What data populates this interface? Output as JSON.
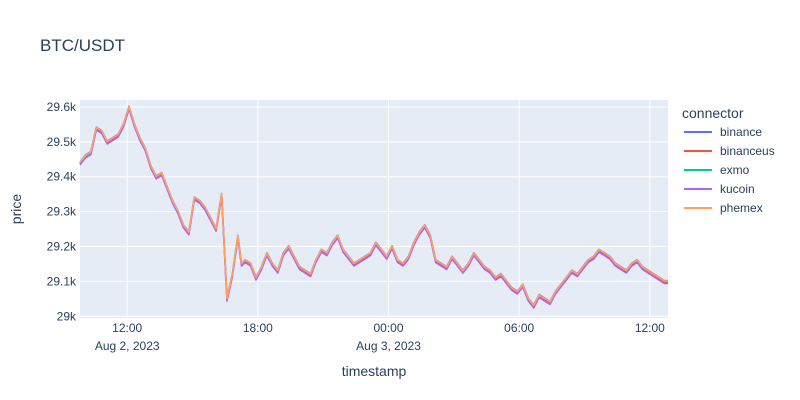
{
  "chart_data": {
    "type": "line",
    "title": "BTC/USDT",
    "xlabel": "timestamp",
    "ylabel": "price",
    "xlim": [
      "2023-08-02 09:50",
      "2023-08-03 12:50"
    ],
    "ylim": [
      28995,
      29620
    ],
    "x_ticks": [
      {
        "t": "2023-08-02 12:00",
        "label": "12:00",
        "sublabel": "Aug 2, 2023"
      },
      {
        "t": "2023-08-02 18:00",
        "label": "18:00",
        "sublabel": ""
      },
      {
        "t": "2023-08-03 00:00",
        "label": "00:00",
        "sublabel": "Aug 3, 2023"
      },
      {
        "t": "2023-08-03 06:00",
        "label": "06:00",
        "sublabel": ""
      },
      {
        "t": "2023-08-03 12:00",
        "label": "12:00",
        "sublabel": ""
      }
    ],
    "y_ticks": [
      {
        "v": 29000,
        "label": "29k"
      },
      {
        "v": 29100,
        "label": "29.1k"
      },
      {
        "v": 29200,
        "label": "29.2k"
      },
      {
        "v": 29300,
        "label": "29.3k"
      },
      {
        "v": 29400,
        "label": "29.4k"
      },
      {
        "v": 29500,
        "label": "29.5k"
      },
      {
        "v": 29600,
        "label": "29.6k"
      }
    ],
    "grid": true,
    "legend_title": "connector",
    "legend_position": "right",
    "base_series": {
      "x": [
        "2023-08-02 09:50",
        "2023-08-02 10:05",
        "2023-08-02 10:20",
        "2023-08-02 10:35",
        "2023-08-02 10:50",
        "2023-08-02 11:05",
        "2023-08-02 11:20",
        "2023-08-02 11:35",
        "2023-08-02 11:50",
        "2023-08-02 12:05",
        "2023-08-02 12:20",
        "2023-08-02 12:35",
        "2023-08-02 12:50",
        "2023-08-02 13:05",
        "2023-08-02 13:20",
        "2023-08-02 13:35",
        "2023-08-02 13:50",
        "2023-08-02 14:05",
        "2023-08-02 14:20",
        "2023-08-02 14:35",
        "2023-08-02 14:50",
        "2023-08-02 15:05",
        "2023-08-02 15:20",
        "2023-08-02 15:35",
        "2023-08-02 15:50",
        "2023-08-02 16:05",
        "2023-08-02 16:20",
        "2023-08-02 16:35",
        "2023-08-02 16:50",
        "2023-08-02 17:05",
        "2023-08-02 17:15",
        "2023-08-02 17:25",
        "2023-08-02 17:40",
        "2023-08-02 17:55",
        "2023-08-02 18:10",
        "2023-08-02 18:25",
        "2023-08-02 18:40",
        "2023-08-02 18:55",
        "2023-08-02 19:10",
        "2023-08-02 19:25",
        "2023-08-02 19:40",
        "2023-08-02 19:55",
        "2023-08-02 20:10",
        "2023-08-02 20:25",
        "2023-08-02 20:40",
        "2023-08-02 20:55",
        "2023-08-02 21:10",
        "2023-08-02 21:25",
        "2023-08-02 21:40",
        "2023-08-02 21:55",
        "2023-08-02 22:10",
        "2023-08-02 22:25",
        "2023-08-02 22:40",
        "2023-08-02 22:55",
        "2023-08-02 23:10",
        "2023-08-02 23:25",
        "2023-08-02 23:40",
        "2023-08-02 23:55",
        "2023-08-03 00:10",
        "2023-08-03 00:25",
        "2023-08-03 00:40",
        "2023-08-03 00:55",
        "2023-08-03 01:10",
        "2023-08-03 01:25",
        "2023-08-03 01:40",
        "2023-08-03 01:55",
        "2023-08-03 02:10",
        "2023-08-03 02:25",
        "2023-08-03 02:40",
        "2023-08-03 02:55",
        "2023-08-03 03:10",
        "2023-08-03 03:25",
        "2023-08-03 03:40",
        "2023-08-03 03:55",
        "2023-08-03 04:10",
        "2023-08-03 04:25",
        "2023-08-03 04:40",
        "2023-08-03 04:55",
        "2023-08-03 05:10",
        "2023-08-03 05:25",
        "2023-08-03 05:40",
        "2023-08-03 05:55",
        "2023-08-03 06:10",
        "2023-08-03 06:25",
        "2023-08-03 06:40",
        "2023-08-03 06:55",
        "2023-08-03 07:10",
        "2023-08-03 07:25",
        "2023-08-03 07:40",
        "2023-08-03 07:55",
        "2023-08-03 08:10",
        "2023-08-03 08:25",
        "2023-08-03 08:40",
        "2023-08-03 08:55",
        "2023-08-03 09:10",
        "2023-08-03 09:25",
        "2023-08-03 09:40",
        "2023-08-03 09:55",
        "2023-08-03 10:10",
        "2023-08-03 10:25",
        "2023-08-03 10:40",
        "2023-08-03 10:55",
        "2023-08-03 11:10",
        "2023-08-03 11:25",
        "2023-08-03 11:40",
        "2023-08-03 11:55",
        "2023-08-03 12:10",
        "2023-08-03 12:25",
        "2023-08-03 12:40",
        "2023-08-03 12:50"
      ],
      "y": [
        29440,
        29460,
        29470,
        29540,
        29530,
        29500,
        29510,
        29520,
        29550,
        29600,
        29550,
        29510,
        29480,
        29430,
        29400,
        29410,
        29370,
        29330,
        29300,
        29260,
        29240,
        29340,
        29330,
        29310,
        29280,
        29250,
        29350,
        29050,
        29120,
        29230,
        29150,
        29160,
        29150,
        29110,
        29140,
        29180,
        29150,
        29130,
        29180,
        29200,
        29170,
        29140,
        29130,
        29120,
        29160,
        29190,
        29180,
        29210,
        29230,
        29190,
        29170,
        29150,
        29160,
        29170,
        29180,
        29210,
        29190,
        29170,
        29200,
        29160,
        29150,
        29170,
        29210,
        29240,
        29260,
        29230,
        29160,
        29150,
        29140,
        29170,
        29150,
        29130,
        29150,
        29180,
        29160,
        29140,
        29130,
        29110,
        29120,
        29100,
        29080,
        29070,
        29090,
        29050,
        29030,
        29060,
        29050,
        29040,
        29070,
        29090,
        29110,
        29130,
        29120,
        29140,
        29160,
        29170,
        29190,
        29180,
        29170,
        29150,
        29140,
        29130,
        29150,
        29160,
        29140,
        29130,
        29120,
        29110,
        29100,
        29100
      ]
    },
    "series": [
      {
        "name": "binance",
        "color": "#636efa",
        "offset": 2
      },
      {
        "name": "binanceus",
        "color": "#ef553b",
        "offset": -3
      },
      {
        "name": "exmo",
        "color": "#00cc96",
        "offset": 0,
        "end": "2023-08-02 10:35"
      },
      {
        "name": "kucoin",
        "color": "#ab63fa",
        "offset": -6
      },
      {
        "name": "phemex",
        "color": "#ffa15a",
        "offset": 1
      }
    ]
  }
}
